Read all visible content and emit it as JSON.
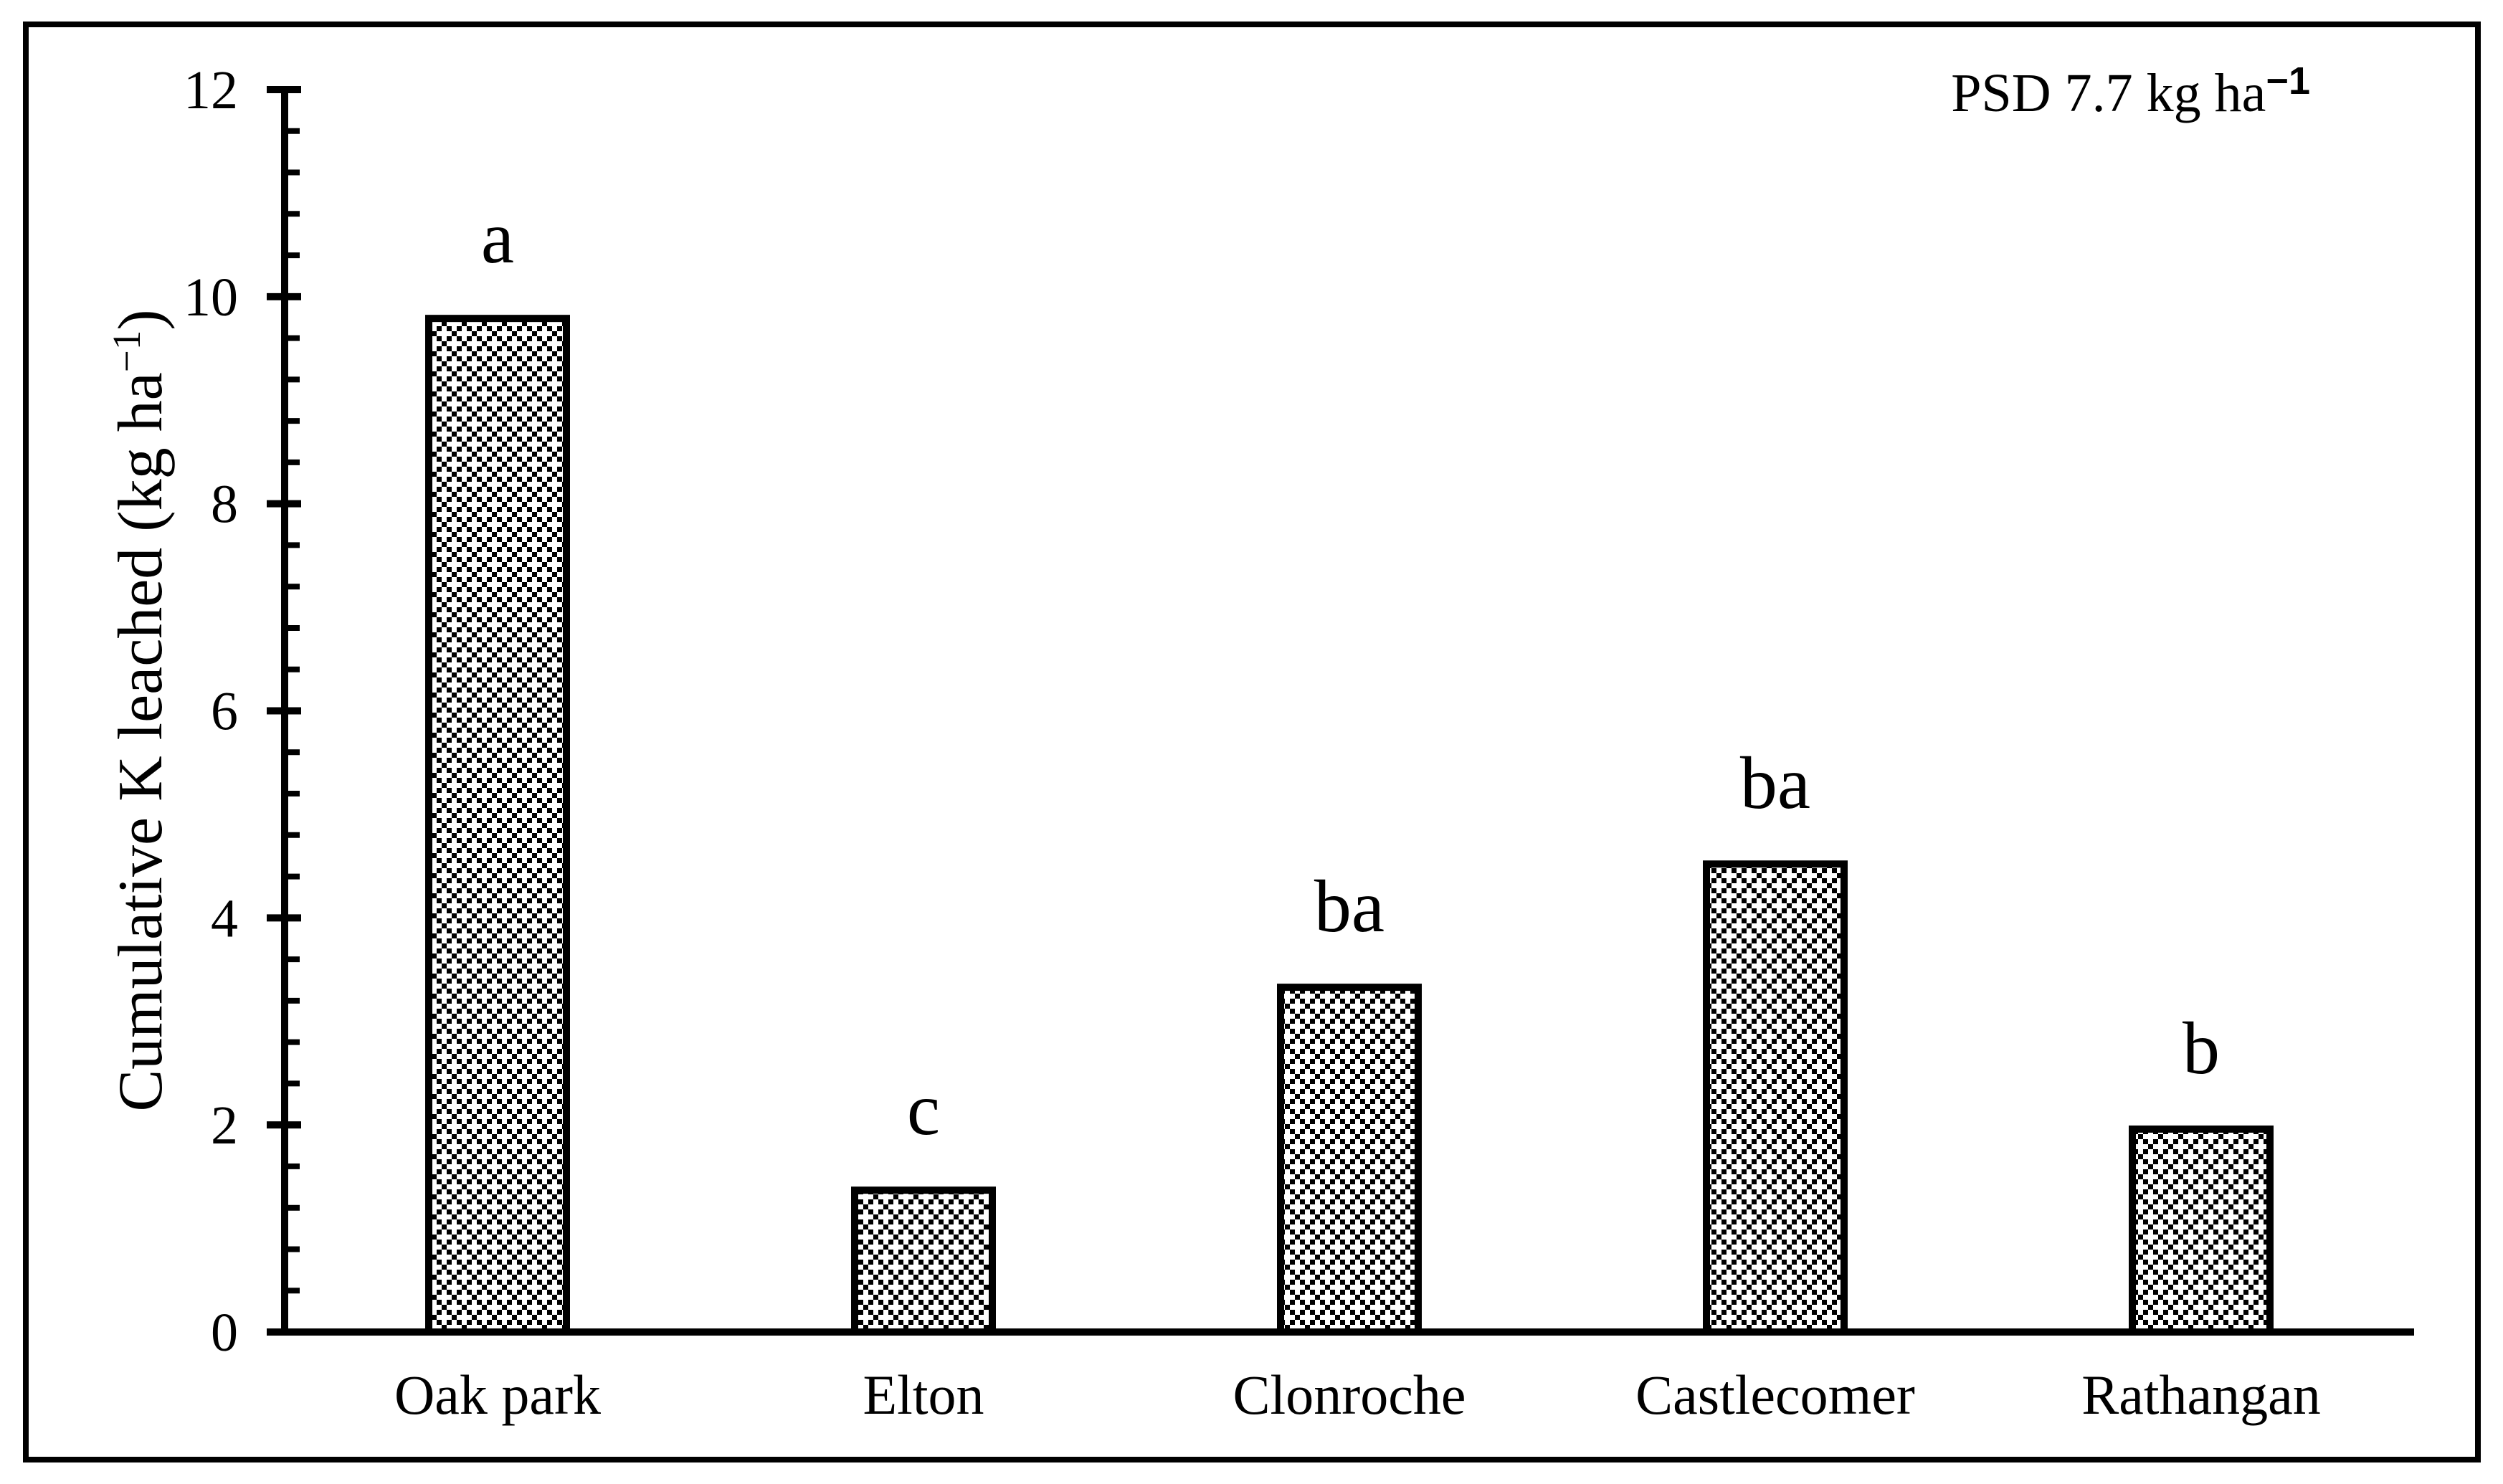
{
  "style": {
    "ink_color": "#000000",
    "background_color": "#ffffff"
  },
  "annotation": {
    "prefix": "PSD 7.7 kg ha",
    "superscript": "−1"
  },
  "y_axis": {
    "label_prefix": "Cumulative K leached (kg ha",
    "label_superscript": "−1",
    "label_suffix": ")",
    "tick_labels": [
      "0",
      "2",
      "4",
      "6",
      "8",
      "10",
      "12"
    ]
  },
  "chart_data": {
    "type": "bar",
    "categories": [
      "Oak park",
      "Elton",
      "Clonroche",
      "Castlecomer",
      "Rathangan"
    ],
    "values": [
      9.79,
      1.37,
      3.33,
      4.52,
      1.96
    ],
    "significance_letters": [
      "a",
      "c",
      "ba",
      "ba",
      "b"
    ],
    "title": "",
    "xlabel": "",
    "ylabel": "Cumulative K leached (kg ha−1)",
    "annotation": "PSD 7.7 kg ha−1",
    "ylim": [
      0,
      12
    ],
    "y_major_step": 2,
    "y_minor_step": 0.4,
    "grid": false,
    "legend": "none",
    "bar_fill": "black-white-crosshatch-weave-pattern",
    "bar_border_color": "#000000"
  }
}
